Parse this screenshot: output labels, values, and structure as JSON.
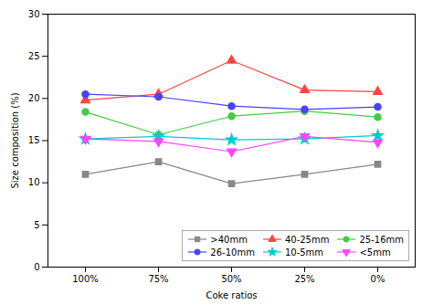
{
  "chart_data": {
    "type": "line",
    "xlabel": "Coke ratios",
    "ylabel": "Size composition (%)",
    "categories": [
      "100%",
      "75%",
      "50%",
      "25%",
      "0%"
    ],
    "series": [
      {
        "name": ">40mm",
        "color": "#888888",
        "marker": "square",
        "values": [
          11.0,
          12.5,
          9.9,
          11.0,
          12.2
        ]
      },
      {
        "name": "40-25mm",
        "color": "#ff4444",
        "marker": "triangle-up",
        "values": [
          19.8,
          20.5,
          24.5,
          21.0,
          20.8
        ]
      },
      {
        "name": "25-16mm",
        "color": "#44cc44",
        "marker": "circle",
        "values": [
          18.4,
          15.7,
          17.9,
          18.5,
          17.8
        ]
      },
      {
        "name": "26-10mm",
        "color": "#4444ff",
        "marker": "circle",
        "values": [
          20.5,
          20.2,
          19.1,
          18.7,
          19.0
        ]
      },
      {
        "name": "10-5mm",
        "color": "#00cccc",
        "marker": "star",
        "values": [
          15.2,
          15.5,
          15.1,
          15.2,
          15.6
        ]
      },
      {
        "name": "<5mm",
        "color": "#ff44ff",
        "marker": "triangle-down",
        "values": [
          15.2,
          14.9,
          13.7,
          15.5,
          14.8
        ]
      }
    ],
    "ylim": [
      0,
      30
    ],
    "yticks": [
      0,
      5,
      10,
      15,
      20,
      25,
      30
    ],
    "grid": false,
    "legend": "lower right"
  }
}
